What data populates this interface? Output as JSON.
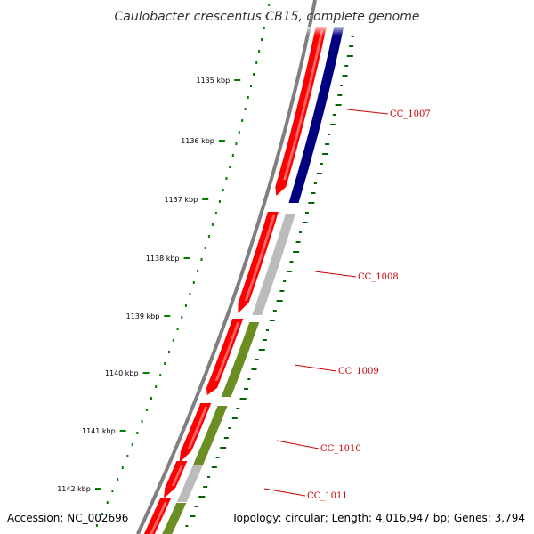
{
  "title": "Caulobacter crescentus CB15, complete genome",
  "footer": {
    "accession": "Accession: NC_002696",
    "summary": "Topology: circular; Length: 4,016,947 bp; Genes: 3,794"
  },
  "scale_ticks": [
    "1135 kbp",
    "1136 kbp",
    "1137 kbp",
    "1138 kbp",
    "1139 kbp",
    "1140 kbp",
    "1141 kbp",
    "1142 kbp"
  ],
  "genes": [
    {
      "name": "CC_1007",
      "strand": "reverse",
      "category_color": "#000080"
    },
    {
      "name": "CC_1008",
      "strand": "reverse",
      "category_color": "#bbbbbb"
    },
    {
      "name": "CC_1009",
      "strand": "reverse",
      "category_color": "#6b8e23"
    },
    {
      "name": "CC_1010",
      "strand": "reverse",
      "category_color": "#6b8e23"
    },
    {
      "name": "CC_1011",
      "strand": "reverse",
      "category_color": "#bbbbbb"
    }
  ],
  "colors": {
    "backbone": "#7f7f7f",
    "cds": "#ff0000",
    "label": "#cc0000",
    "gc_ticks": "#006400",
    "scale_ticks": "#008000"
  }
}
